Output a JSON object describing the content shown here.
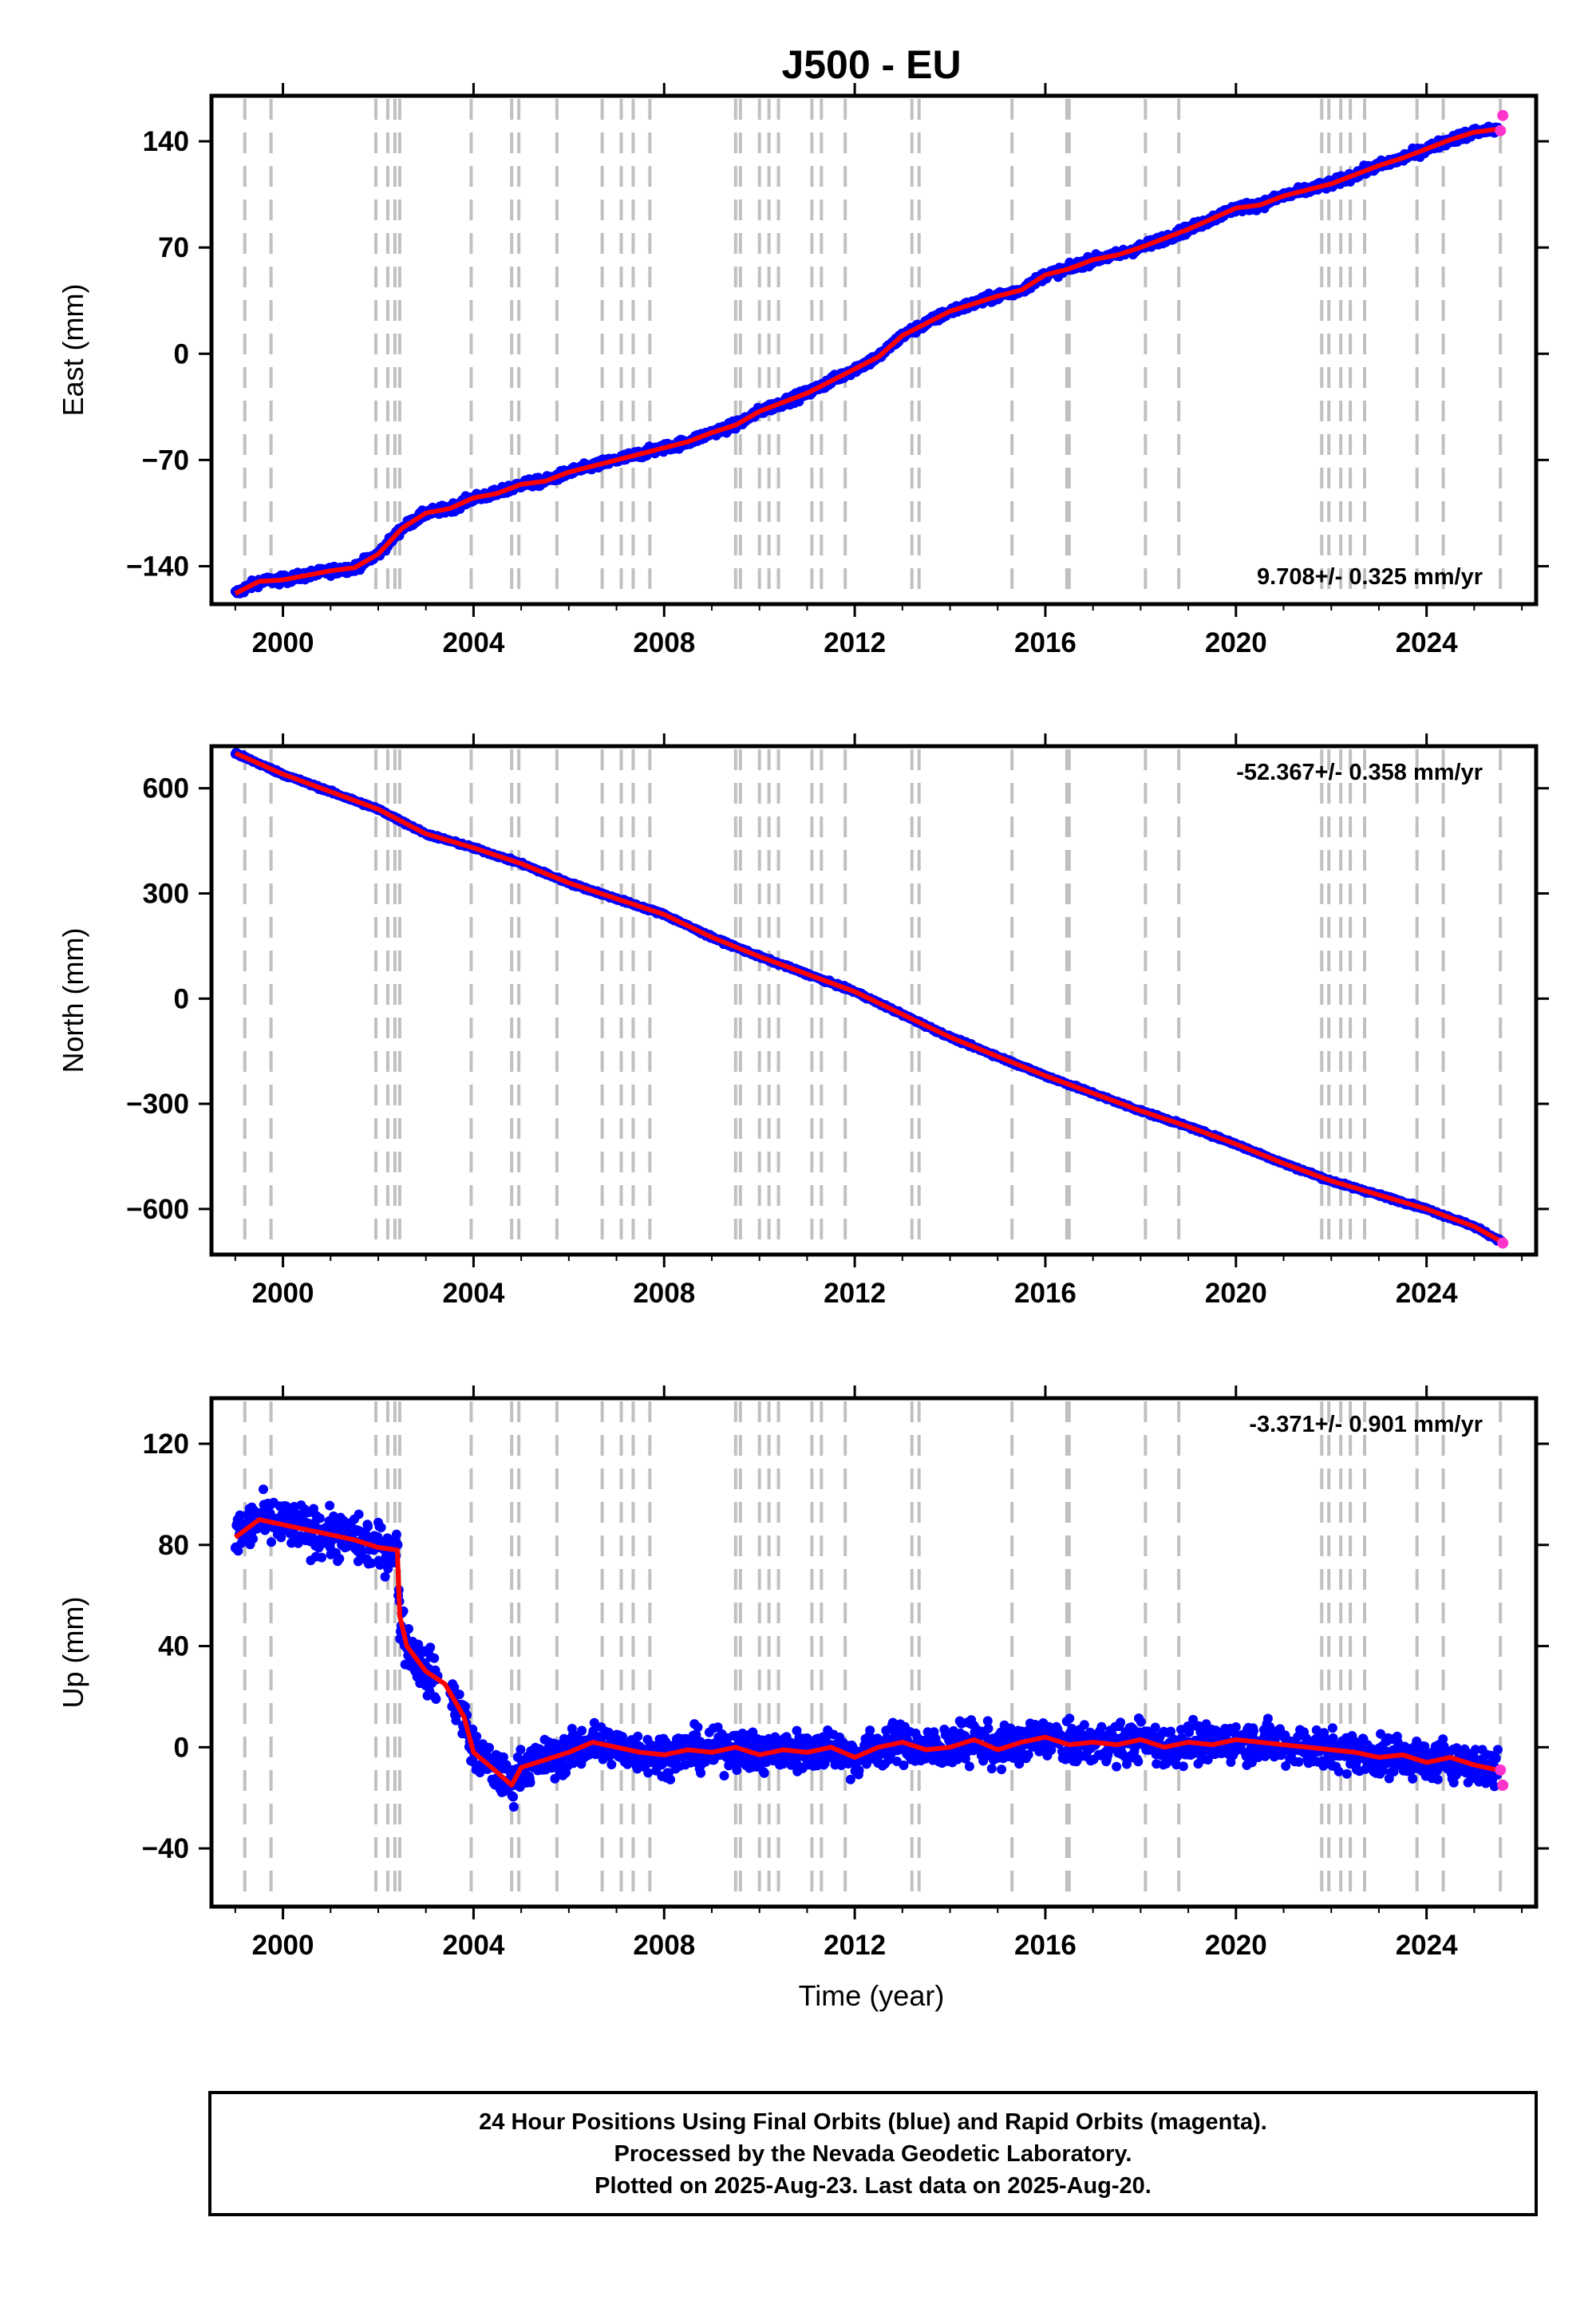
{
  "title": "J500 - EU",
  "colors": {
    "final_orbits": "#0000ff",
    "rapid_orbits": "#ff33cc",
    "fit": "#ff0000",
    "event_lines": "#c0c0c0"
  },
  "x_axis": {
    "range": [
      1998.5,
      2026.3
    ],
    "ticks": [
      2000,
      2004,
      2008,
      2012,
      2016,
      2020,
      2024
    ],
    "tick_labels": [
      "2000",
      "2004",
      "2008",
      "2012",
      "2016",
      "2020",
      "2024"
    ],
    "label": "Time (year)"
  },
  "event_lines": [
    1999.2,
    1999.75,
    2001.95,
    2002.2,
    2002.35,
    2002.45,
    2003.95,
    2004.8,
    2004.95,
    2005.75,
    2006.7,
    2007.1,
    2007.35,
    2007.7,
    2009.5,
    2009.6,
    2010.0,
    2010.2,
    2010.4,
    2011.1,
    2011.3,
    2011.8,
    2013.2,
    2013.35,
    2015.3,
    2016.45,
    2016.5,
    2018.1,
    2018.8,
    2021.8,
    2021.95,
    2022.2,
    2022.4,
    2022.7,
    2023.8,
    2024.35,
    2025.55
  ],
  "chart_data": [
    {
      "type": "scatter",
      "component": "east",
      "ylabel": "East (mm)",
      "ylim": [
        -165,
        170
      ],
      "yticks": [
        -140,
        -70,
        0,
        70,
        140
      ],
      "ytick_labels": [
        "−140",
        "−70",
        "0",
        "70",
        "140"
      ],
      "rate_label": "9.708+/- 0.325 mm/yr",
      "rate_position": "bottom-right",
      "series": [
        {
          "x": [
            1999.0,
            1999.5,
            2000.0,
            2000.5,
            2001.0,
            2001.5,
            2002.0,
            2002.5,
            2003.0,
            2003.5,
            2004.0,
            2004.5,
            2005.0,
            2005.5,
            2006.0,
            2006.5,
            2007.0,
            2007.5,
            2008.0,
            2008.5,
            2009.0,
            2009.5,
            2010.0,
            2010.5,
            2011.0,
            2011.5,
            2012.0,
            2012.5,
            2013.0,
            2013.5,
            2014.0,
            2014.5,
            2015.0,
            2015.5,
            2016.0,
            2016.5,
            2017.0,
            2017.5,
            2018.0,
            2018.5,
            2019.0,
            2019.5,
            2020.0,
            2020.5,
            2021.0,
            2021.5,
            2022.0,
            2022.5,
            2023.0,
            2023.5,
            2024.0,
            2024.5,
            2025.0,
            2025.5
          ],
          "y": [
            -158,
            -150,
            -149,
            -146,
            -143,
            -141,
            -132,
            -115,
            -105,
            -102,
            -95,
            -92,
            -86,
            -84,
            -78,
            -74,
            -70,
            -66,
            -62,
            -58,
            -52,
            -47,
            -38,
            -32,
            -26,
            -18,
            -10,
            -2,
            12,
            20,
            28,
            33,
            38,
            42,
            52,
            56,
            62,
            65,
            70,
            76,
            82,
            89,
            96,
            98,
            104,
            108,
            112,
            118,
            124,
            129,
            135,
            141,
            146,
            148
          ]
        },
        {
          "name": "Rapid Orbits",
          "x": [
            2025.55,
            2025.6
          ],
          "y": [
            147,
            157
          ]
        }
      ]
    },
    {
      "type": "scatter",
      "component": "north",
      "ylabel": "North (mm)",
      "ylim": [
        -730,
        720
      ],
      "yticks": [
        -600,
        -300,
        0,
        300,
        600
      ],
      "ytick_labels": [
        "−600",
        "−300",
        "0",
        "300",
        "600"
      ],
      "rate_label": "-52.367+/- 0.358 mm/yr",
      "rate_position": "top-right",
      "series": [
        {
          "x": [
            1999.0,
            2000.0,
            2001.0,
            2002.0,
            2003.0,
            2004.0,
            2005.0,
            2006.0,
            2007.0,
            2008.0,
            2009.0,
            2010.0,
            2011.0,
            2012.0,
            2013.0,
            2014.0,
            2015.0,
            2016.0,
            2017.0,
            2018.0,
            2019.0,
            2020.0,
            2021.0,
            2022.0,
            2023.0,
            2024.0,
            2025.0,
            2025.6
          ],
          "y": [
            700,
            640,
            590,
            540,
            470,
            430,
            385,
            330,
            285,
            240,
            175,
            120,
            70,
            20,
            -45,
            -110,
            -165,
            -220,
            -270,
            -320,
            -365,
            -415,
            -470,
            -520,
            -560,
            -600,
            -650,
            -695
          ]
        },
        {
          "name": "Rapid Orbits",
          "x": [
            2025.6
          ],
          "y": [
            -697
          ]
        }
      ]
    },
    {
      "type": "scatter",
      "component": "up",
      "ylabel": "Up (mm)",
      "ylim": [
        -63,
        138
      ],
      "yticks": [
        -40,
        0,
        40,
        80,
        120
      ],
      "ytick_labels": [
        "−40",
        "0",
        "40",
        "80",
        "120"
      ],
      "rate_label": "-3.371+/- 0.901 mm/yr",
      "rate_position": "top-right",
      "series": [
        {
          "x": [
            1999.0,
            1999.5,
            2000.0,
            2000.5,
            2001.0,
            2001.5,
            2002.0,
            2002.4,
            2002.45,
            2002.6,
            2003.0,
            2003.4,
            2003.8,
            2004.0,
            2004.5,
            2004.8,
            2005.0,
            2005.5,
            2006.0,
            2006.5,
            2007.0,
            2007.5,
            2008.0,
            2008.5,
            2009.0,
            2009.5,
            2010.0,
            2010.5,
            2011.0,
            2011.5,
            2012.0,
            2012.5,
            2013.0,
            2013.5,
            2014.0,
            2014.5,
            2015.0,
            2015.5,
            2016.0,
            2016.5,
            2017.0,
            2017.5,
            2018.0,
            2018.5,
            2019.0,
            2019.5,
            2020.0,
            2020.5,
            2021.0,
            2021.5,
            2022.0,
            2022.5,
            2023.0,
            2023.5,
            2024.0,
            2024.5,
            2025.0,
            2025.5
          ],
          "y": [
            83,
            90,
            88,
            86,
            84,
            82,
            79,
            78,
            52,
            40,
            30,
            25,
            12,
            -2,
            -10,
            -15,
            -8,
            -5,
            -2,
            2,
            0,
            -2,
            -3,
            -1,
            -2,
            0,
            -3,
            -1,
            -2,
            0,
            -4,
            0,
            2,
            -1,
            0,
            3,
            -1,
            2,
            4,
            1,
            2,
            1,
            3,
            0,
            2,
            1,
            3,
            2,
            1,
            0,
            -1,
            -2,
            -4,
            -3,
            -6,
            -4,
            -7,
            -9
          ]
        },
        {
          "name": "Rapid Orbits",
          "x": [
            2025.55,
            2025.6
          ],
          "y": [
            -9,
            -15
          ]
        }
      ]
    }
  ],
  "footer": {
    "line1": "24 Hour Positions Using Final Orbits (blue) and Rapid Orbits (magenta).",
    "line2": "Processed by the Nevada Geodetic Laboratory.",
    "line3": "Plotted on 2025-Aug-23. Last data on 2025-Aug-20."
  }
}
